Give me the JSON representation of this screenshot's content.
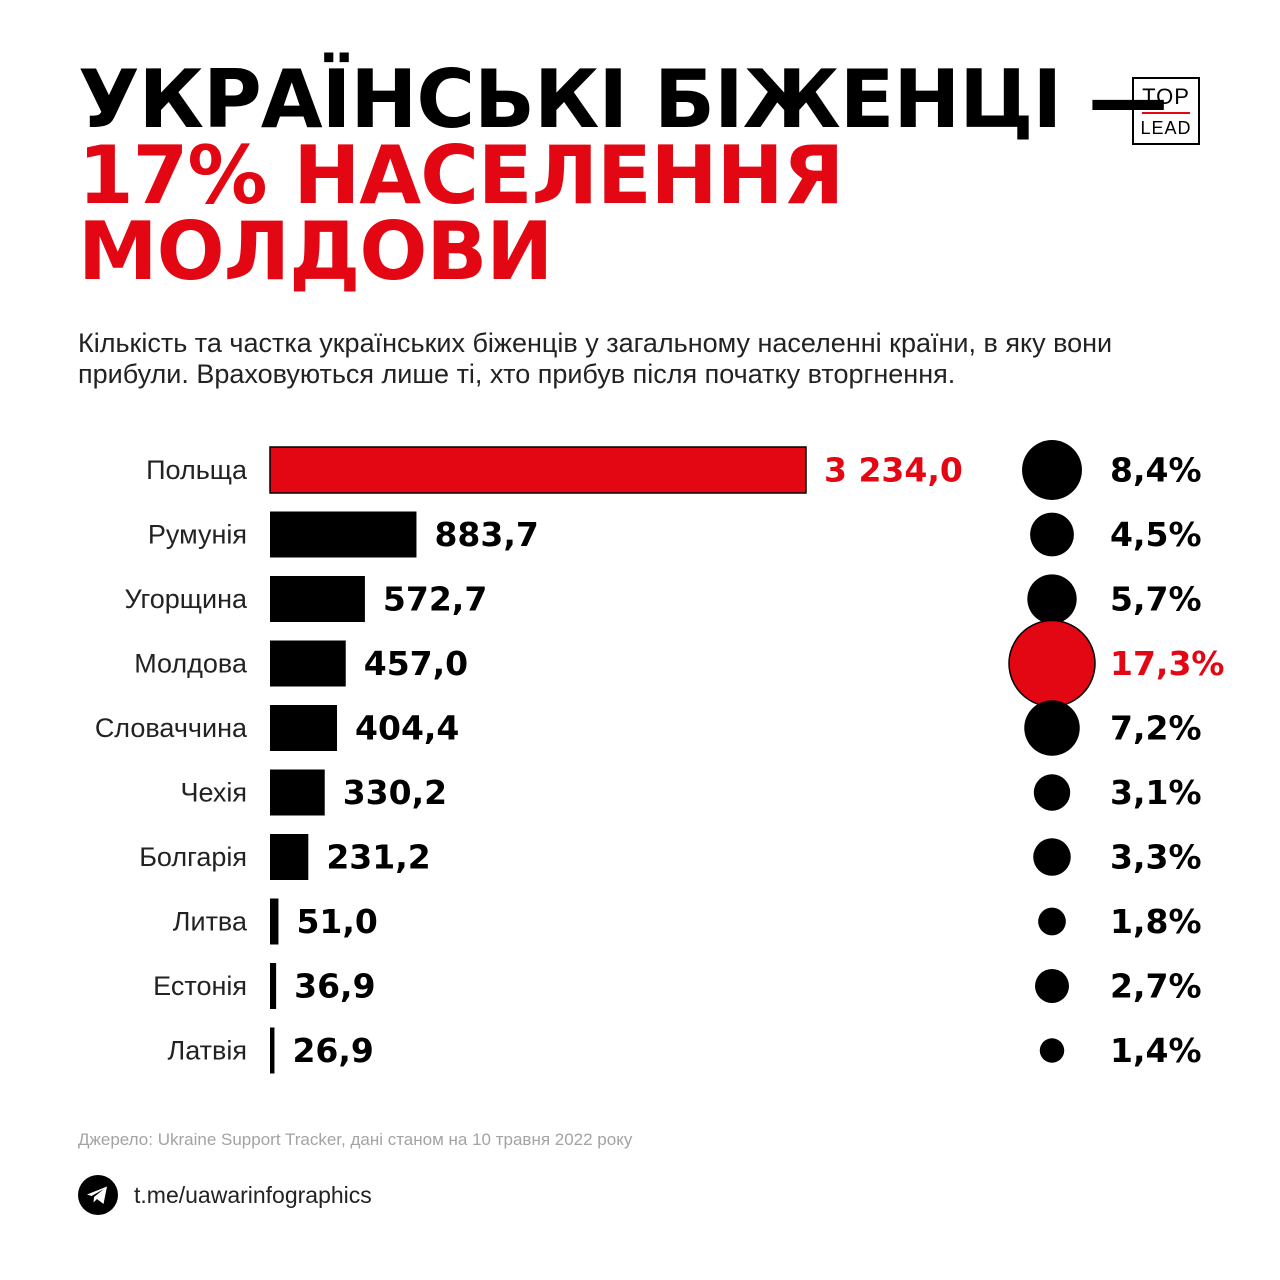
{
  "header": {
    "title_lines": [
      "УКРАЇНСЬКІ БІЖЕНЦІ —",
      "17% НАСЕЛЕННЯ",
      "МОЛДОВИ"
    ],
    "logo_top": "TOP",
    "logo_bottom": "LEAD"
  },
  "subtitle": "Кількість та частка українських біженців у загальному населенні країни, в яку вони прибули. Враховуються лише ті, хто прибув після початку вторгнення.",
  "colors": {
    "accent": "#e30613",
    "default": "#000000"
  },
  "chart_data": {
    "type": "bar",
    "orientation": "horizontal",
    "categories": [
      "Польща",
      "Румунія",
      "Угорщина",
      "Молдова",
      "Словаччина",
      "Чехія",
      "Болгарія",
      "Литва",
      "Естонія",
      "Латвія"
    ],
    "series": [
      {
        "values": [
          3234.0,
          883.7,
          572.7,
          457.0,
          404.4,
          330.2,
          231.2,
          51.0,
          36.9,
          26.9
        ],
        "labels": [
          "3 234,0",
          "883,7",
          "572,7",
          "457,0",
          "404,4",
          "330,2",
          "231,2",
          "51,0",
          "36,9",
          "26,9"
        ]
      },
      {
        "values": [
          8.4,
          4.5,
          5.7,
          17.3,
          7.2,
          3.1,
          3.3,
          1.8,
          2.7,
          1.4
        ],
        "labels": [
          "8,4%",
          "4,5%",
          "5,7%",
          "17,3%",
          "7,2%",
          "3,1%",
          "3,3%",
          "1,8%",
          "2,7%",
          "1,4%"
        ]
      }
    ],
    "highlight": {
      "bar": "Польща",
      "circle": "Молдова"
    },
    "grid": false,
    "legend": "none"
  },
  "source": "Джерело: Ukraine Support Tracker, дані станом на 10 травня 2022 року",
  "footer": {
    "icon": "telegram-icon",
    "link": "t.me/uawarinfographics"
  }
}
